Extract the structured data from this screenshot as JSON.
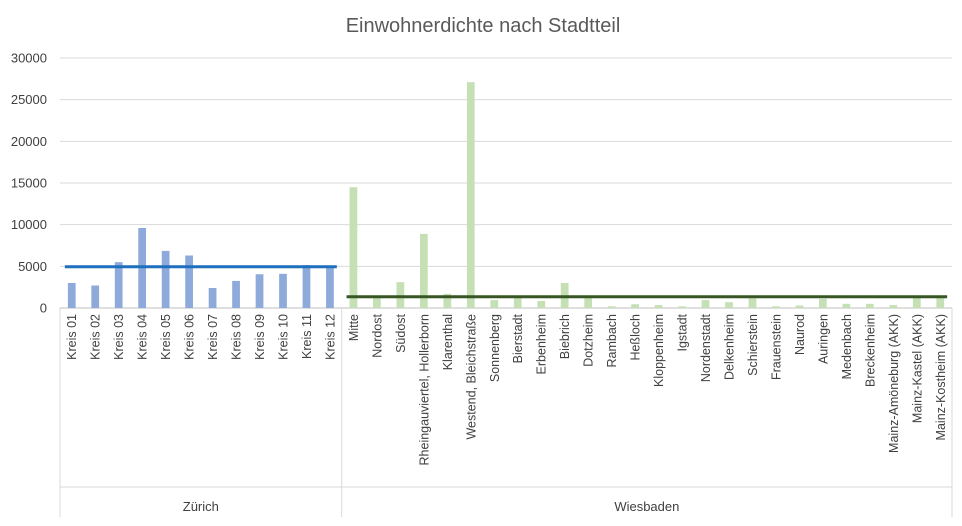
{
  "chart_data": {
    "type": "bar",
    "title": "Einwohnerdichte nach Stadtteil",
    "xlabel": "",
    "ylabel": "",
    "ylim": [
      0,
      30000
    ],
    "yticks": [
      0,
      5000,
      10000,
      15000,
      20000,
      25000,
      30000
    ],
    "grid": "horizontal",
    "legend": "none",
    "groups": [
      {
        "name": "Zürich",
        "color": "#8eaadb",
        "average_line_color": "#1f6fbf",
        "average": 4950,
        "categories": [
          "Kreis 01",
          "Kreis 02",
          "Kreis 03",
          "Kreis 04",
          "Kreis 05",
          "Kreis 06",
          "Kreis 07",
          "Kreis 08",
          "Kreis 09",
          "Kreis 10",
          "Kreis 11",
          "Kreis 12"
        ],
        "values": [
          3000,
          2700,
          5500,
          9600,
          6850,
          6300,
          2400,
          3250,
          4050,
          4100,
          5150,
          5000
        ]
      },
      {
        "name": "Wiesbaden",
        "color": "#c5e0b4",
        "average_line_color": "#375623",
        "average": 1350,
        "categories": [
          "Mitte",
          "Nordost",
          "Südost",
          "Rheingauviertel, Hollerborn",
          "Klarenthal",
          "Westend, Bleichstraße",
          "Sonnenberg",
          "Bierstadt",
          "Erbenheim",
          "Biebrich",
          "Dotzheim",
          "Rambach",
          "Heßloch",
          "Kloppenheim",
          "Igstadt",
          "Nordenstadt",
          "Delkenheim",
          "Schierstein",
          "Frauenstein",
          "Naurod",
          "Auringen",
          "Medenbach",
          "Breckenheim",
          "Mainz-Amöneburg (AKK)",
          "Mainz-Kastel (AKK)",
          "Mainz-Kostheim (AKK)"
        ],
        "values": [
          14500,
          1500,
          3100,
          8900,
          1700,
          27100,
          950,
          1350,
          850,
          3000,
          1450,
          200,
          450,
          350,
          200,
          950,
          700,
          1150,
          200,
          300,
          1100,
          500,
          500,
          350,
          1400,
          1450
        ]
      }
    ]
  }
}
